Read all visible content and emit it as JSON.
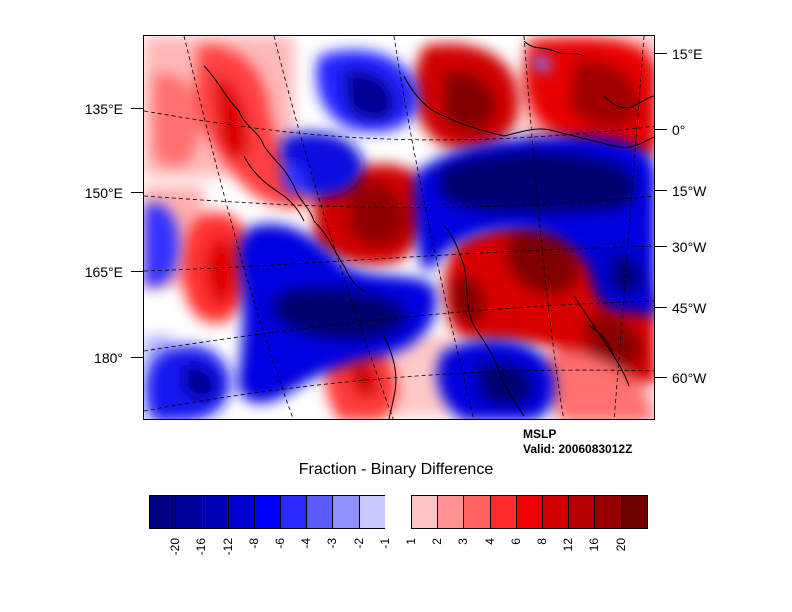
{
  "map": {
    "left_lon_labels": [
      "135°E",
      "150°E",
      "165°E",
      "180°"
    ],
    "right_lon_labels": [
      "15°E",
      "0°",
      "15°W",
      "30°W",
      "45°W",
      "60°W"
    ]
  },
  "info": {
    "field": "MSLP",
    "valid": "Valid: 2006083012Z"
  },
  "colorbar": {
    "title": "Fraction - Binary Difference",
    "labels": [
      "-20",
      "-16",
      "-12",
      "-8",
      "-6",
      "-4",
      "-3",
      "-2",
      "-1",
      "1",
      "2",
      "3",
      "4",
      "6",
      "8",
      "12",
      "16",
      "20"
    ],
    "colors": [
      "#000080",
      "#00009a",
      "#0000b4",
      "#0000d0",
      "#0000ff",
      "#2a2aff",
      "#5a5aff",
      "#9090ff",
      "#c8c8ff",
      "#ffffff",
      "#ffc4c4",
      "#ff9090",
      "#ff6060",
      "#ff2a2a",
      "#ee0000",
      "#d20000",
      "#b40000",
      "#960000",
      "#700000"
    ]
  }
}
